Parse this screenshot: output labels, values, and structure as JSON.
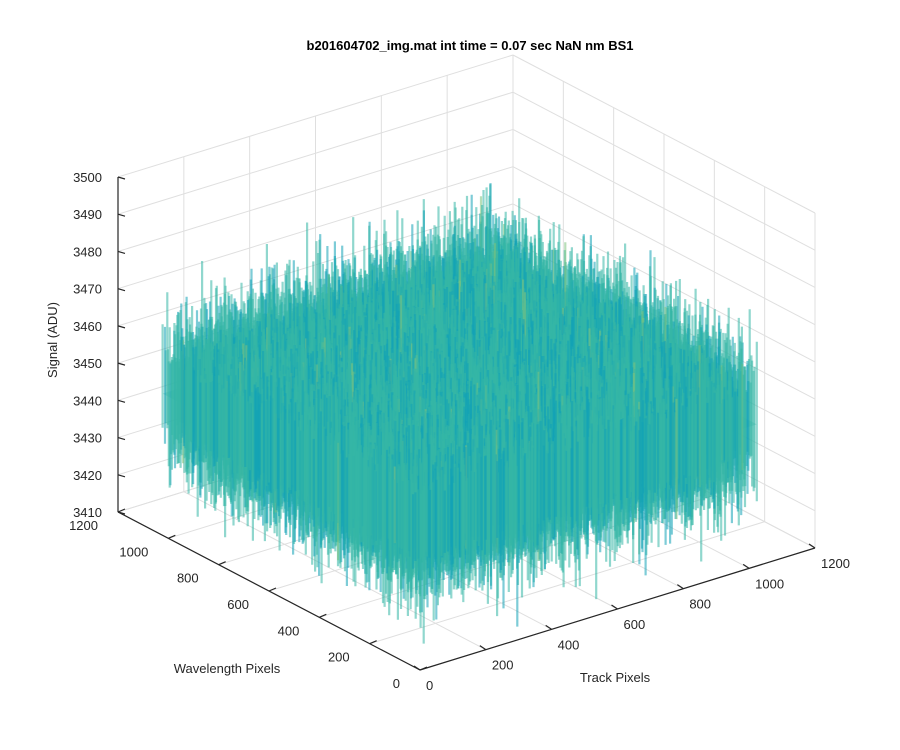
{
  "chart_data": {
    "type": "surface",
    "title": "b201604702_img.mat int time = 0.07 sec  NaN nm BS1",
    "xlabel": "Track Pixels",
    "ylabel": "Wavelength Pixels",
    "zlabel": "Signal (ADU)",
    "xlim": [
      0,
      1200
    ],
    "ylim": [
      0,
      1200
    ],
    "zlim": [
      3410,
      3500
    ],
    "xticks": [
      "0",
      "200",
      "400",
      "600",
      "800",
      "1000",
      "1200"
    ],
    "yticks": [
      "0",
      "200",
      "400",
      "600",
      "800",
      "1000",
      "1200"
    ],
    "zticks": [
      "3410",
      "3420",
      "3430",
      "3440",
      "3450",
      "3460",
      "3470",
      "3480",
      "3490",
      "3500"
    ],
    "data_extent": {
      "x": [
        1,
        1024
      ],
      "y": [
        1,
        1024
      ]
    },
    "signal_mean": 3448,
    "signal_range": [
      3420,
      3495
    ],
    "colormap": [
      "#0072bd",
      "#12a3b6",
      "#35b7a6",
      "#7dc27e",
      "#bfca62",
      "#f4d64a"
    ],
    "grid": true,
    "view": "3d-perspective"
  }
}
